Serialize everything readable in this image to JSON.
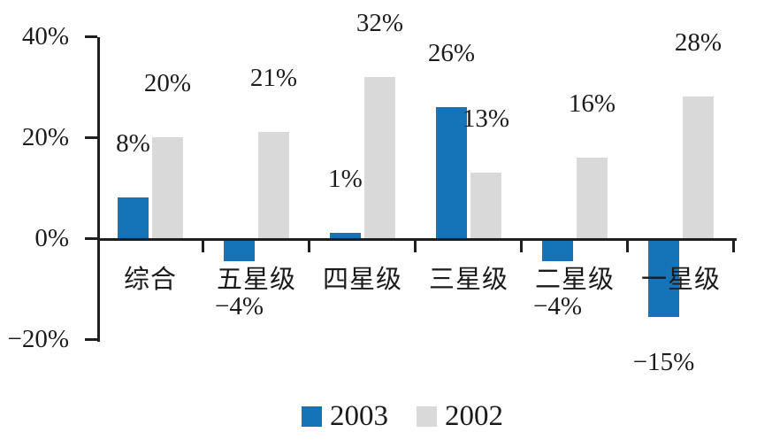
{
  "chart_data": {
    "type": "bar",
    "categories": [
      "综合",
      "五星级",
      "四星级",
      "三星级",
      "二星级",
      "一星级"
    ],
    "series": [
      {
        "name": "2003",
        "color": "#1574B8",
        "values": [
          8,
          -4,
          1,
          26,
          -4,
          -15
        ],
        "labels": [
          "8%",
          "−4%",
          "1%",
          "26%",
          "−4%",
          "−15%"
        ]
      },
      {
        "name": "2002",
        "color": "#D9D9D9",
        "values": [
          20,
          21,
          32,
          13,
          16,
          28
        ],
        "labels": [
          "20%",
          "21%",
          "32%",
          "13%",
          "16%",
          "28%"
        ]
      }
    ],
    "yticks": [
      {
        "label": "40%",
        "value": 40
      },
      {
        "label": "20%",
        "value": 20
      },
      {
        "label": "0%",
        "value": 0
      },
      {
        "label": "−20%",
        "value": -20
      }
    ],
    "ylim": [
      -20,
      40
    ],
    "grid": false,
    "legend": {
      "position": "bottom",
      "entries": [
        "2003",
        "2002"
      ]
    },
    "axis_color": "#1f1f1f",
    "text_color": "#1b1b1b"
  }
}
